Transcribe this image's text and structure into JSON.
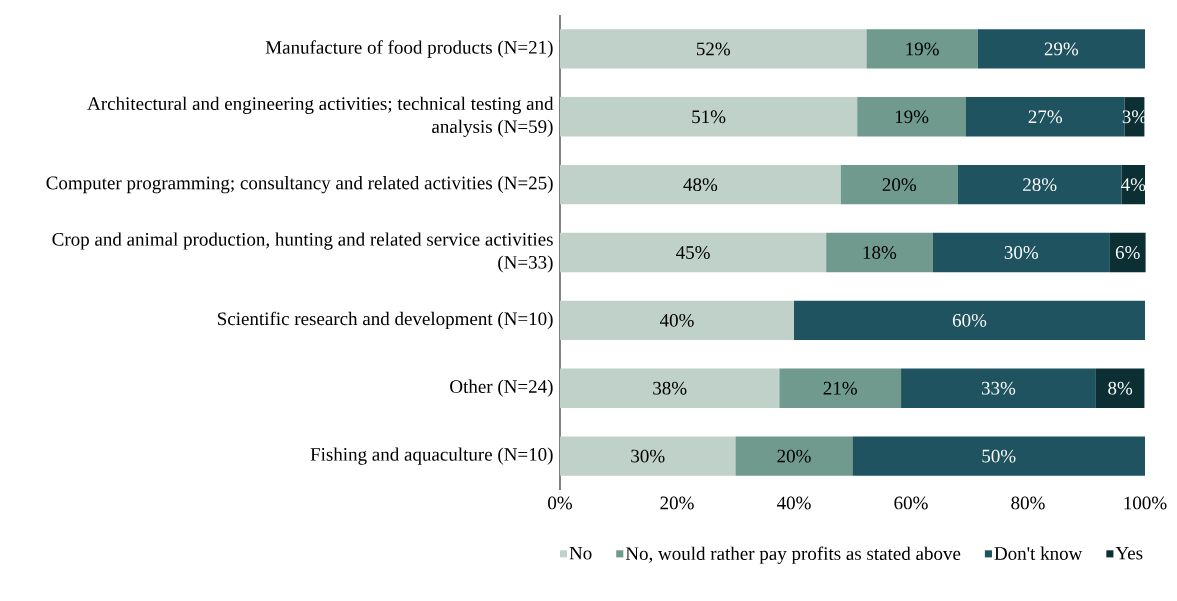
{
  "chart_data": {
    "type": "bar",
    "orientation": "horizontal",
    "stacked": true,
    "categories": [
      "Manufacture of food products (N=21)",
      "Architectural and engineering activities; technical testing and analysis (N=59)",
      "Computer programming; consultancy and related activities (N=25)",
      "Crop and animal production, hunting and related service activities (N=33)",
      "Scientific research and development (N=10)",
      "Other (N=24)",
      "Fishing and aquaculture (N=10)"
    ],
    "series": [
      {
        "name": "No",
        "color": "#bfd1c8",
        "values": [
          52.4,
          50.8,
          48,
          45.5,
          40,
          37.5,
          30
        ],
        "value_labels": [
          "52%",
          "51%",
          "48%",
          "45%",
          "40%",
          "38%",
          "30%"
        ]
      },
      {
        "name": "No, would rather pay profits as stated above",
        "color": "#6f9a8d",
        "values": [
          19.0,
          18.6,
          20,
          18.2,
          null,
          20.8,
          20
        ],
        "value_labels": [
          "19%",
          "19%",
          "20%",
          "18%",
          null,
          "21%",
          "20%"
        ]
      },
      {
        "name": "Don't know",
        "color": "#1f5360",
        "values": [
          28.6,
          27.1,
          28,
          30.3,
          60,
          33.3,
          50
        ],
        "value_labels": [
          "29%",
          "27%",
          "28%",
          "30%",
          "60%",
          "33%",
          "50%"
        ]
      },
      {
        "name": "Yes",
        "color": "#0b2f33",
        "values": [
          null,
          3.4,
          4,
          6.1,
          null,
          8.3,
          null
        ],
        "value_labels": [
          null,
          "3%",
          "4%",
          "6%",
          null,
          "8%",
          null
        ]
      }
    ],
    "xlim": [
      0,
      100
    ],
    "xticks": [
      {
        "value": 0,
        "label": "0%"
      },
      {
        "value": 20,
        "label": "20%"
      },
      {
        "value": 40,
        "label": "40%"
      },
      {
        "value": 60,
        "label": "60%"
      },
      {
        "value": 80,
        "label": "80%"
      },
      {
        "value": 100,
        "label": "100%"
      }
    ],
    "grid": false,
    "legend": "bottom"
  }
}
